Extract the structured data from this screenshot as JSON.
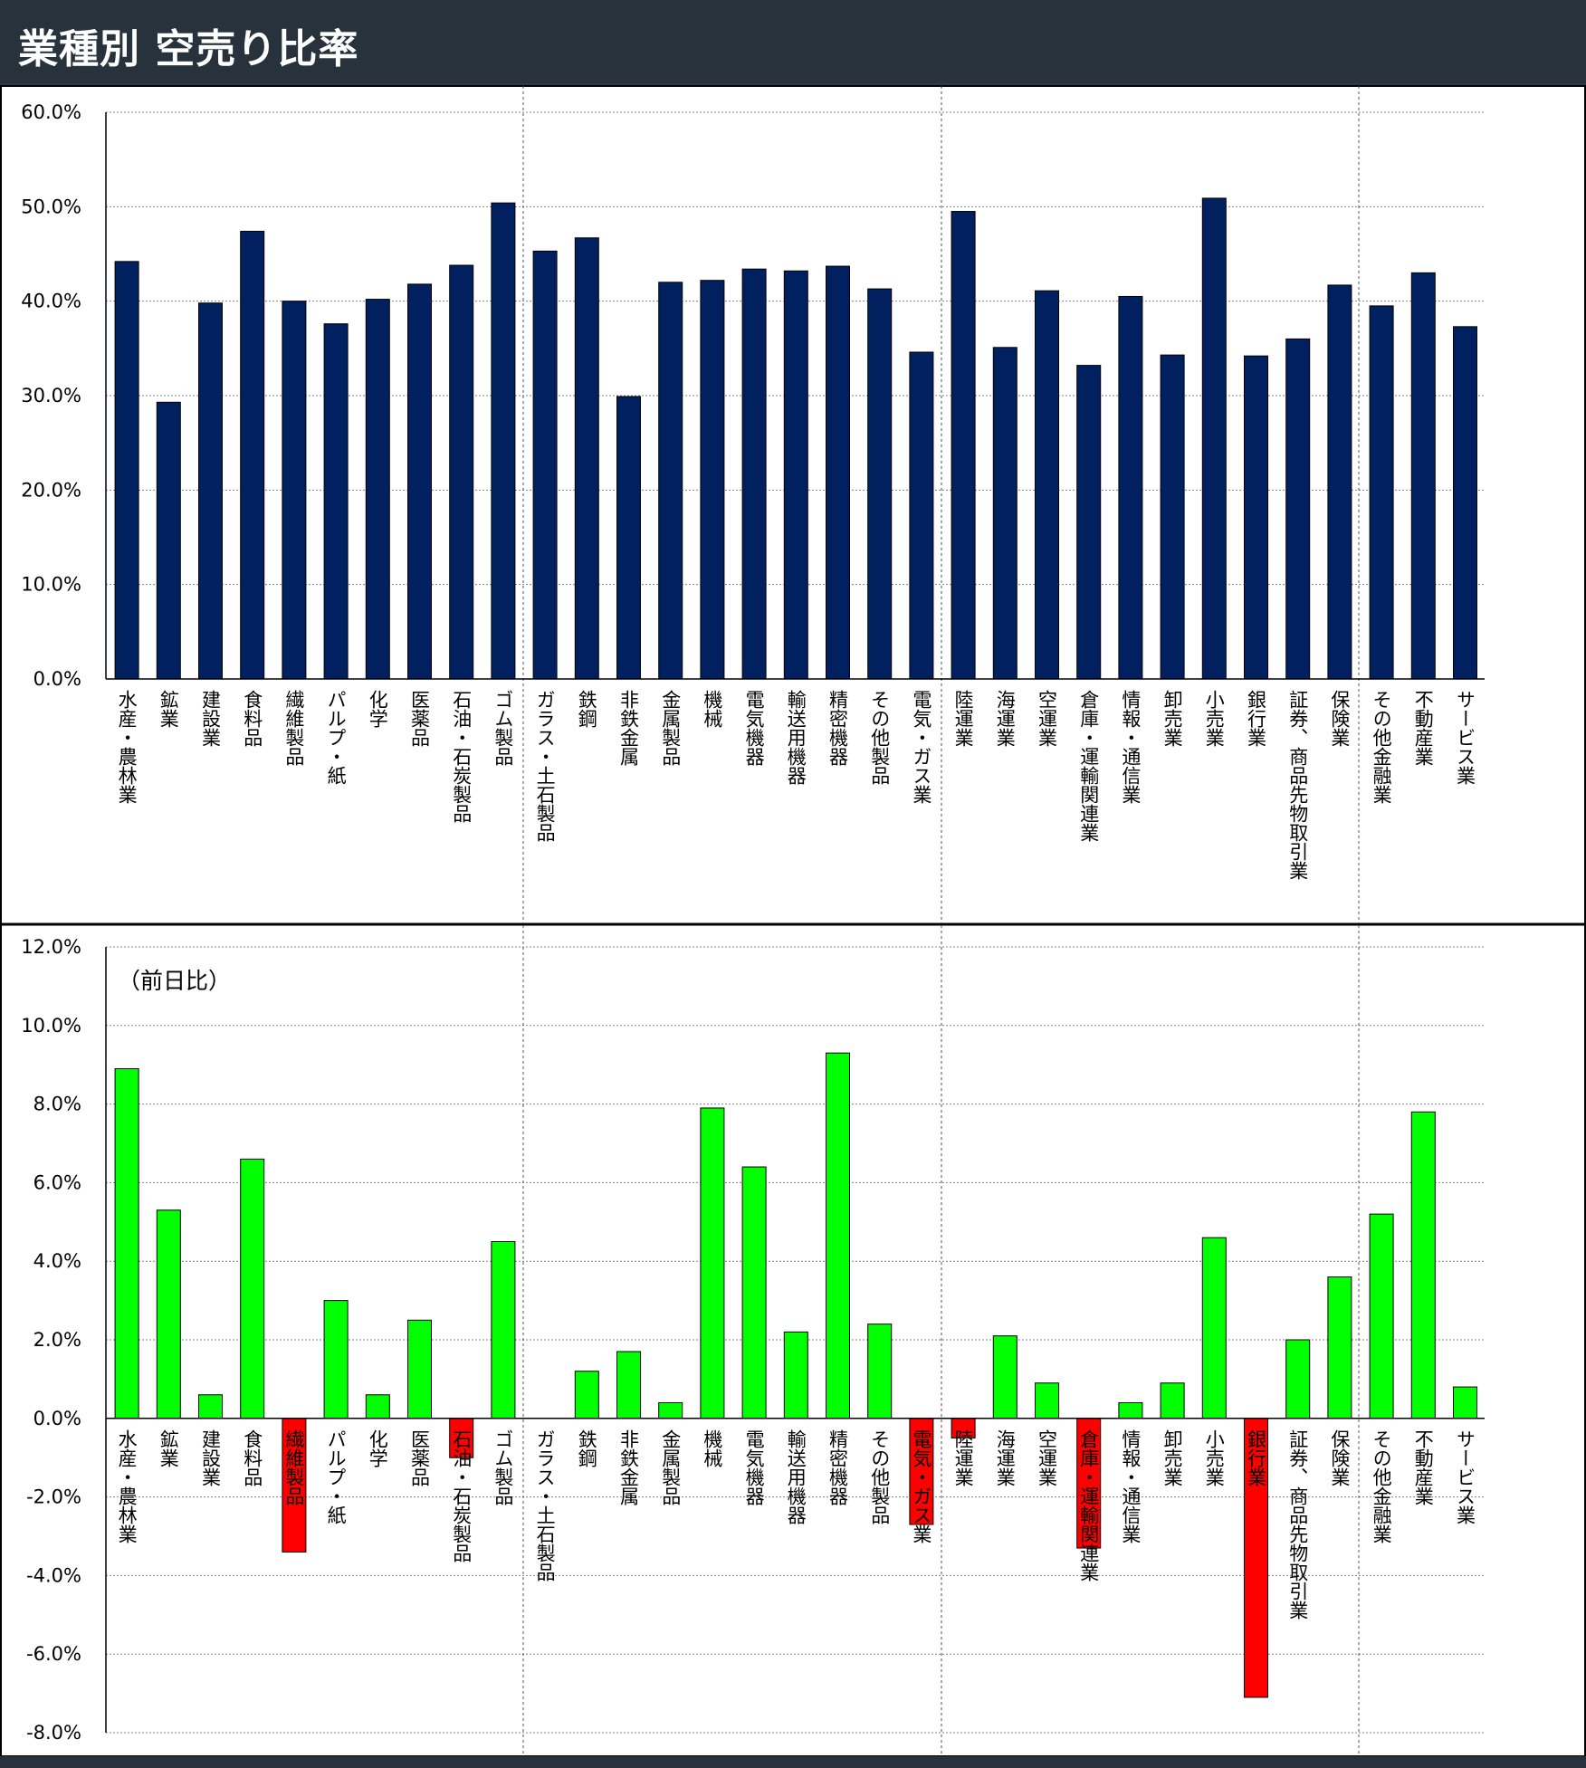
{
  "header": {
    "title": "業種別 空売り比率"
  },
  "colors": {
    "bar_top": "#002060",
    "bar_positive": "#00ff00",
    "bar_negative": "#ff0000",
    "header_bg": "#27323d"
  },
  "chart_data": [
    {
      "type": "bar",
      "title": "",
      "ylim": [
        0,
        60
      ],
      "y_ticks": [
        "60.0%",
        "50.0%",
        "40.0%",
        "30.0%",
        "20.0%",
        "10.0%",
        "0.0%"
      ],
      "grid": true,
      "categories": [
        "水産・農林業",
        "鉱業",
        "建設業",
        "食料品",
        "繊維製品",
        "パルプ・紙",
        "化学",
        "医薬品",
        "石油・石炭製品",
        "ゴム製品",
        "ガラス・土石製品",
        "鉄鋼",
        "非鉄金属",
        "金属製品",
        "機械",
        "電気機器",
        "輸送用機器",
        "精密機器",
        "その他製品",
        "電気・ガス業",
        "陸運業",
        "海運業",
        "空運業",
        "倉庫・運輸関連業",
        "情報・通信業",
        "卸売業",
        "小売業",
        "銀行業",
        "証券、商品先物取引業",
        "保険業",
        "その他金融業",
        "不動産業",
        "サービス業"
      ],
      "values": [
        44.2,
        29.3,
        39.8,
        47.4,
        40.0,
        37.6,
        40.2,
        41.8,
        43.8,
        50.4,
        45.3,
        46.7,
        29.9,
        42.0,
        42.2,
        43.4,
        43.2,
        43.7,
        41.3,
        34.6,
        49.5,
        35.1,
        41.1,
        33.2,
        40.5,
        34.3,
        50.9,
        34.2,
        36.0,
        41.7,
        39.5,
        43.0,
        37.3
      ]
    },
    {
      "type": "bar",
      "title": "",
      "annotation": "（前日比）",
      "ylim": [
        -8,
        12
      ],
      "y_ticks": [
        "12.0%",
        "10.0%",
        "8.0%",
        "6.0%",
        "4.0%",
        "2.0%",
        "0.0%",
        "-2.0%",
        "-4.0%",
        "-6.0%",
        "-8.0%"
      ],
      "grid": true,
      "categories": [
        "水産・農林業",
        "鉱業",
        "建設業",
        "食料品",
        "繊維製品",
        "パルプ・紙",
        "化学",
        "医薬品",
        "石油・石炭製品",
        "ゴム製品",
        "ガラス・土石製品",
        "鉄鋼",
        "非鉄金属",
        "金属製品",
        "機械",
        "電気機器",
        "輸送用機器",
        "精密機器",
        "その他製品",
        "電気・ガス業",
        "陸運業",
        "海運業",
        "空運業",
        "倉庫・運輸関連業",
        "情報・通信業",
        "卸売業",
        "小売業",
        "銀行業",
        "証券、商品先物取引業",
        "保険業",
        "その他金融業",
        "不動産業",
        "サービス業"
      ],
      "values": [
        8.9,
        5.3,
        0.6,
        6.6,
        -3.4,
        3.0,
        0.6,
        2.5,
        -1.0,
        4.5,
        0.0,
        1.2,
        1.7,
        0.4,
        7.9,
        6.4,
        2.2,
        9.3,
        2.4,
        -2.7,
        -0.5,
        2.1,
        0.9,
        -3.3,
        0.4,
        0.9,
        4.6,
        -7.1,
        2.0,
        3.6,
        5.2,
        7.8,
        0.8
      ]
    }
  ]
}
